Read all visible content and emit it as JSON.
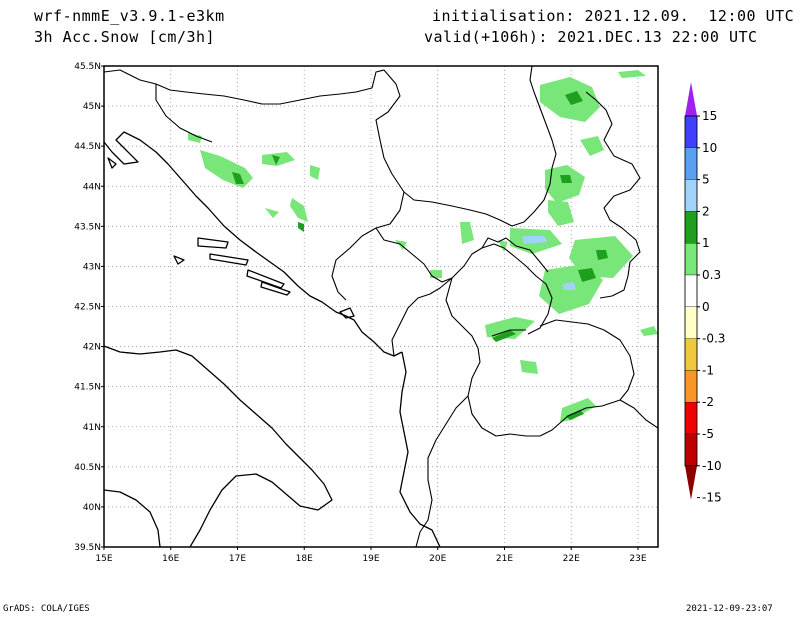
{
  "header": {
    "model": "wrf-nmmE_v3.9.1-e3km",
    "field": "3h Acc.Snow [cm/3h]",
    "init": "initialisation: 2021.12.09.  12:00 UTC",
    "valid": "valid(+106h): 2021.DEC.13 22:00 UTC"
  },
  "footer": {
    "left": "GrADS: COLA/IGES",
    "right": "2021-12-09-23:07"
  },
  "map": {
    "lon_range": [
      15,
      23.3
    ],
    "lat_range": [
      39.5,
      45.5
    ],
    "lon_ticks": [
      "15E",
      "16E",
      "17E",
      "18E",
      "19E",
      "20E",
      "21E",
      "22E",
      "23E"
    ],
    "lat_ticks": [
      "45.5N",
      "45N",
      "44.5N",
      "44N",
      "43.5N",
      "43N",
      "42.5N",
      "42N",
      "41.5N",
      "41N",
      "40.5N",
      "40N",
      "39.5N"
    ]
  },
  "colorbar": {
    "labels": [
      "15",
      "10",
      "5",
      "2",
      "1",
      "0.3",
      "0",
      "-0.3",
      "-1",
      "-2",
      "-5",
      "-10",
      "-15"
    ],
    "colors": [
      "#a020f0",
      "#4040ff",
      "#5aa0f0",
      "#a0d2fa",
      "#1ea01e",
      "#78e678",
      "#ffffff",
      "#ffffc8",
      "#f0c83c",
      "#fa9628",
      "#f00000",
      "#c00000",
      "#8c0000"
    ]
  }
}
